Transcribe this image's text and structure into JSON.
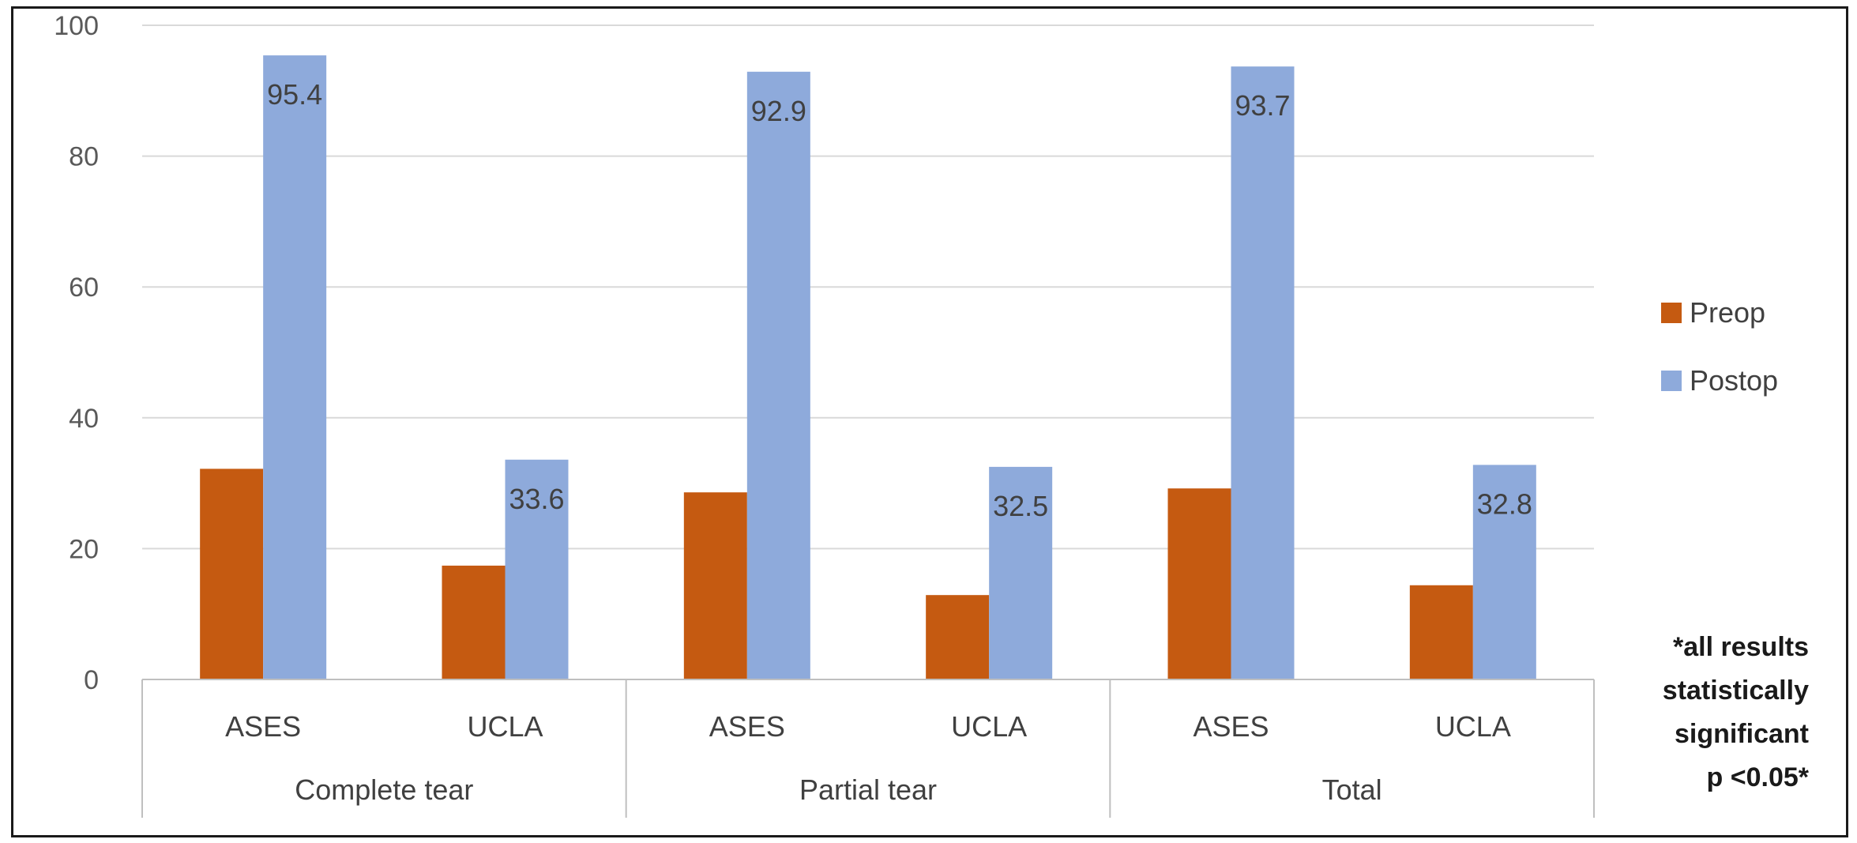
{
  "chart_data": {
    "type": "bar",
    "groups": [
      "Complete tear",
      "Partial tear",
      "Total"
    ],
    "categories": [
      "ASES",
      "UCLA",
      "ASES",
      "UCLA",
      "ASES",
      "UCLA"
    ],
    "series": [
      {
        "name": "Preop",
        "color": "#c55a11",
        "values": [
          32.2,
          17.4,
          28.6,
          12.9,
          29.2,
          14.4
        ]
      },
      {
        "name": "Postop",
        "color": "#8eaadb",
        "values": [
          95.4,
          33.6,
          92.9,
          32.5,
          93.7,
          32.8
        ]
      }
    ],
    "data_labels": {
      "Postop": [
        "95.4",
        "33.6",
        "92.9",
        "32.5",
        "93.7",
        "32.8"
      ]
    },
    "ylim": [
      0,
      100
    ],
    "yticks": [
      0,
      20,
      40,
      60,
      80,
      100
    ],
    "grid": true,
    "legend_position": "right",
    "note": [
      "*all results",
      "statistically",
      "significant",
      "p <0.05*"
    ]
  }
}
